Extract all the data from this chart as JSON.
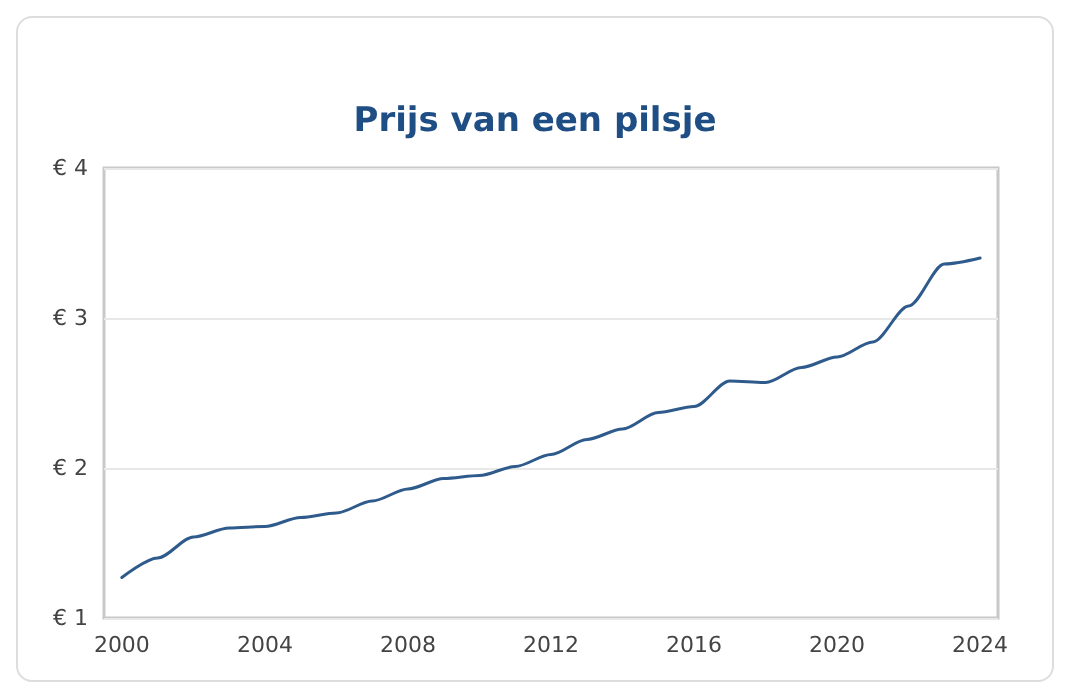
{
  "chart_data": {
    "type": "line",
    "title": "Prijs van een pilsje",
    "x": [
      2000,
      2001,
      2002,
      2003,
      2004,
      2005,
      2006,
      2007,
      2008,
      2009,
      2010,
      2011,
      2012,
      2013,
      2014,
      2015,
      2016,
      2017,
      2018,
      2019,
      2020,
      2021,
      2022,
      2023,
      2024
    ],
    "series": [
      {
        "color": "#2f5b8c",
        "values": [
          1.27,
          1.4,
          1.54,
          1.6,
          1.61,
          1.67,
          1.7,
          1.78,
          1.86,
          1.93,
          1.95,
          2.01,
          2.09,
          2.19,
          2.26,
          2.37,
          2.41,
          2.58,
          2.57,
          2.67,
          2.74,
          2.84,
          3.08,
          3.36,
          3.4
        ]
      }
    ],
    "xlim": [
      1999.5,
      2024.5
    ],
    "xticks": [
      2000,
      2004,
      2008,
      2012,
      2016,
      2020,
      2024
    ],
    "ylim": [
      1,
      4
    ],
    "yticks": [
      {
        "value": 1,
        "label": "€ 1"
      },
      {
        "value": 2,
        "label": "€ 2"
      },
      {
        "value": 3,
        "label": "€ 3"
      },
      {
        "value": 4,
        "label": "€ 4"
      }
    ],
    "grid": "y",
    "marker": "none",
    "line_style": "solid"
  }
}
